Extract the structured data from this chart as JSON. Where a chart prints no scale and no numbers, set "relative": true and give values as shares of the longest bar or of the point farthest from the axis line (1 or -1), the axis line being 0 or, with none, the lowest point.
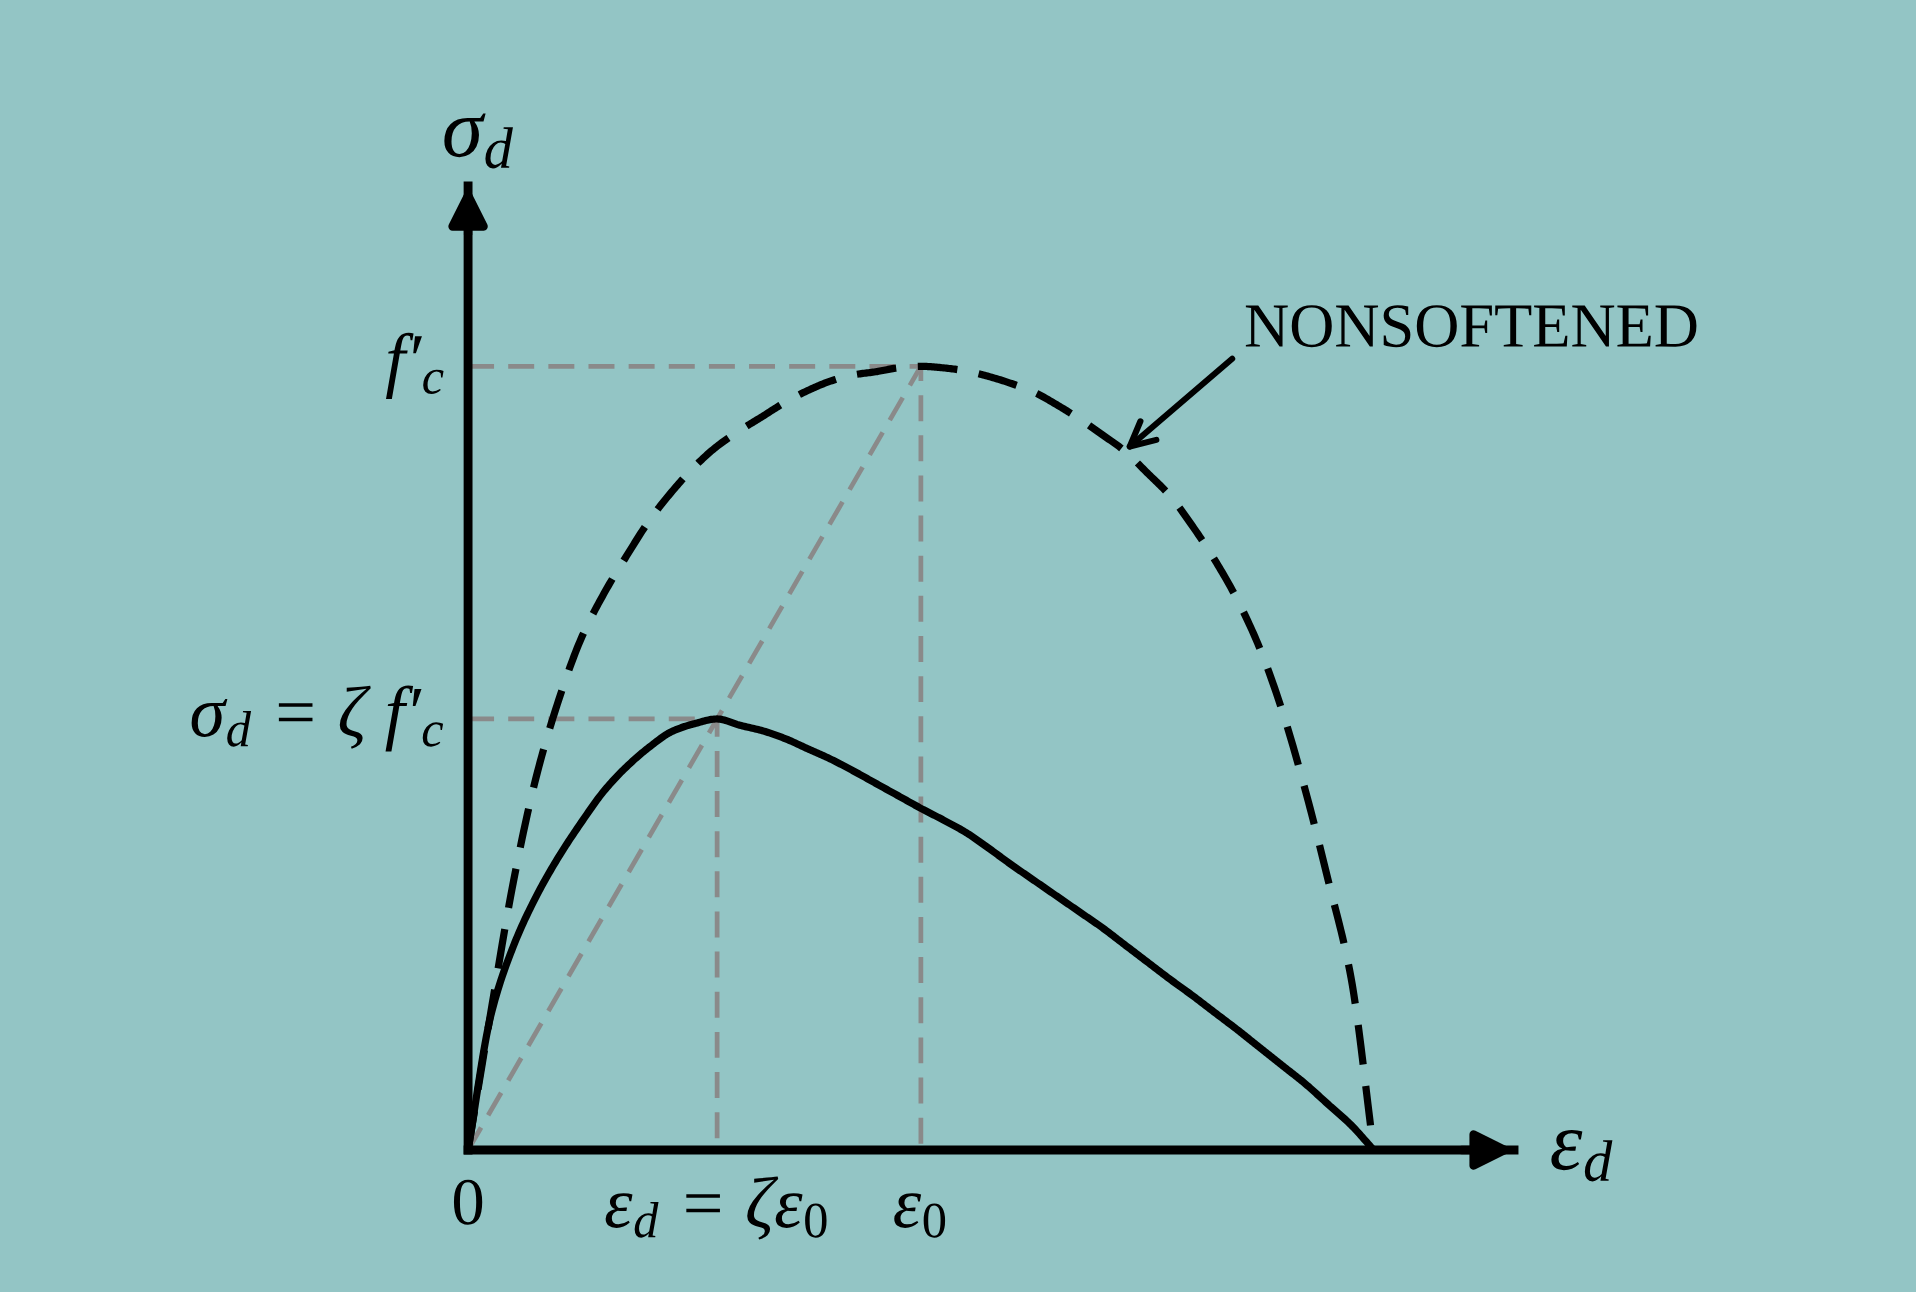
{
  "chart_data": {
    "type": "line",
    "relative": true,
    "xlabel": "ε$_{d}$",
    "ylabel": "σ$_{d}$",
    "categories": [
      "0",
      null,
      null,
      null,
      null,
      null,
      null,
      null,
      null,
      null,
      null,
      "ε$_{d}$ = ζε$_{0}$",
      null,
      null,
      null,
      null,
      null,
      null,
      null,
      null,
      "ε$_{0}$",
      null,
      null,
      null,
      null,
      null,
      null,
      null,
      null,
      null,
      null,
      null,
      null,
      null,
      null,
      null,
      null,
      null,
      null,
      null,
      null
    ],
    "series": [
      {
        "name": "f′$_{c}$",
        "color": "#8a8a8a",
        "line_style": "dashed",
        "x": [
          "0",
          "ε$_{0}$",
          "ε$_{0}$"
        ],
        "values": [
          1,
          1,
          0
        ]
      },
      {
        "name": "σ$_{d}$ = ζ f′$_{c}$",
        "color": "#8a8a8a",
        "line_style": "dashed",
        "x": [
          "0",
          "ε$_{d}$ = ζε$_{0}$",
          "ε$_{d}$ = ζε$_{0}$"
        ],
        "values": [
          0.55,
          0.55,
          0
        ]
      },
      {
        "color": "#8a8a8a",
        "line_style": "dashed",
        "x": [
          "0",
          "ε$_{0}$"
        ],
        "values": [
          0,
          1
        ]
      },
      {
        "name": "NONSOFTENED",
        "color": "#000000",
        "line_style": "dashed",
        "values": [
          0,
          0.175,
          0.342,
          0.475,
          0.574,
          0.653,
          0.71,
          0.758,
          0.803,
          0.84,
          0.872,
          0.898,
          0.918,
          0.936,
          0.954,
          0.969,
          0.981,
          0.989,
          0.993,
          0.998,
          1,
          0.998,
          0.994,
          0.987,
          0.978,
          0.967,
          0.951,
          0.933,
          0.913,
          0.892,
          0.864,
          0.835,
          0.796,
          0.752,
          0.701,
          0.638,
          0.557,
          0.457,
          0.343,
          0.22,
          0
        ]
      },
      {
        "color": "#000000",
        "line_style": "solid",
        "values": [
          0,
          0.171,
          0.26,
          0.323,
          0.374,
          0.418,
          0.458,
          0.489,
          0.514,
          0.534,
          0.544,
          0.55,
          0.542,
          0.535,
          0.525,
          0.512,
          0.499,
          0.484,
          0.468,
          0.452,
          0.436,
          0.421,
          0.405,
          0.385,
          0.364,
          0.344,
          0.324,
          0.304,
          0.284,
          0.262,
          0.24,
          0.218,
          0.197,
          0.175,
          0.153,
          0.13,
          0.107,
          0.084,
          0.058,
          0.032,
          0
        ]
      }
    ]
  }
}
